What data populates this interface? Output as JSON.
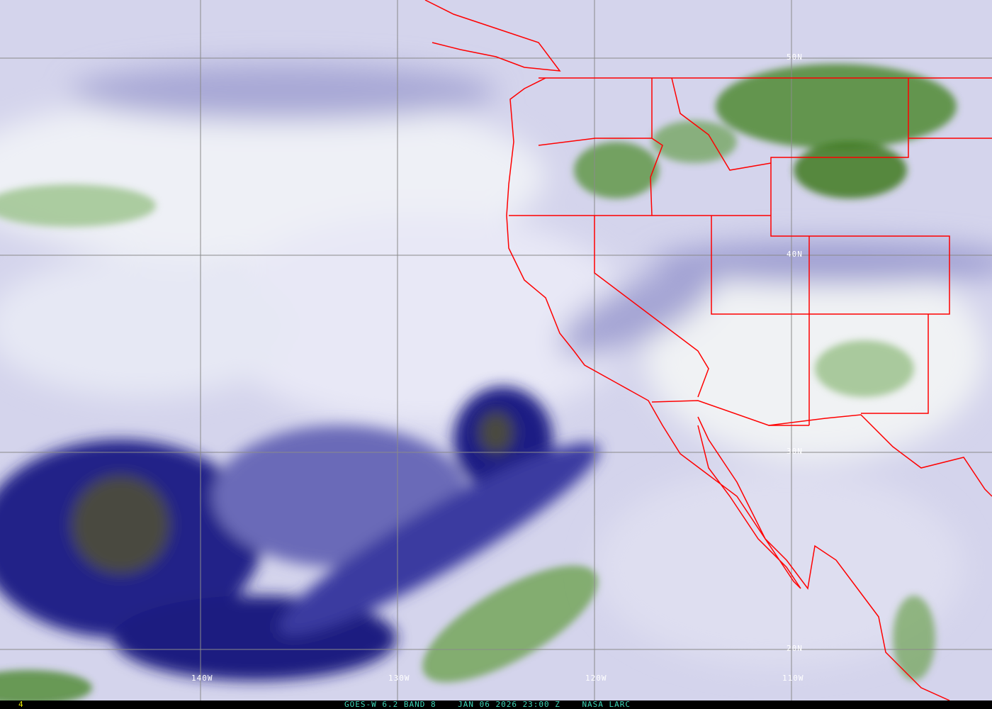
{
  "caption": {
    "satellite": "GOES-W 6.2 BAND 8",
    "datetime": "JAN 06 2026 23:00 Z",
    "source": "NASA LARC"
  },
  "frame_number": "4",
  "grid": {
    "longitudes": [
      "140W",
      "130W",
      "120W",
      "110W"
    ],
    "latitudes": [
      "50N",
      "40N",
      "30N",
      "20N"
    ]
  },
  "colors": {
    "background_moist": "#e6e6f4",
    "dry_air": "#1c1c84",
    "cold_cloud": "#4e8a2e",
    "borders": "#ff0000",
    "grid": "#8a8a8a",
    "caption": "#3fd6b8"
  }
}
